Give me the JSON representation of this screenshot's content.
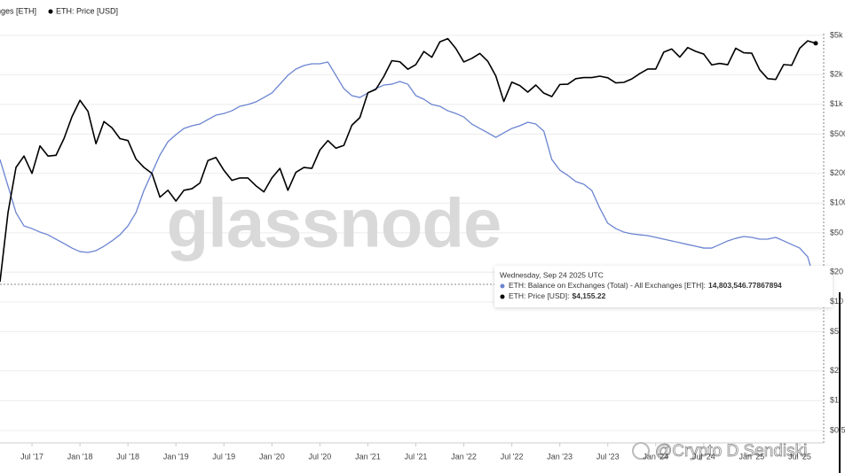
{
  "chart_data": {
    "type": "line",
    "log_scale": true,
    "grid": true,
    "x": [
      "2017-03",
      "2017-04",
      "2017-05",
      "2017-06",
      "2017-07",
      "2017-08",
      "2017-09",
      "2017-10",
      "2017-11",
      "2017-12",
      "2018-01",
      "2018-02",
      "2018-03",
      "2018-04",
      "2018-05",
      "2018-06",
      "2018-07",
      "2018-08",
      "2018-09",
      "2018-10",
      "2018-11",
      "2018-12",
      "2019-01",
      "2019-02",
      "2019-03",
      "2019-04",
      "2019-05",
      "2019-06",
      "2019-07",
      "2019-08",
      "2019-09",
      "2019-10",
      "2019-11",
      "2019-12",
      "2020-01",
      "2020-02",
      "2020-03",
      "2020-04",
      "2020-05",
      "2020-06",
      "2020-07",
      "2020-08",
      "2020-09",
      "2020-10",
      "2020-11",
      "2020-12",
      "2021-01",
      "2021-02",
      "2021-03",
      "2021-04",
      "2021-05",
      "2021-06",
      "2021-07",
      "2021-08",
      "2021-09",
      "2021-10",
      "2021-11",
      "2021-12",
      "2022-01",
      "2022-02",
      "2022-03",
      "2022-04",
      "2022-05",
      "2022-06",
      "2022-07",
      "2022-08",
      "2022-09",
      "2022-10",
      "2022-11",
      "2022-12",
      "2023-01",
      "2023-02",
      "2023-03",
      "2023-04",
      "2023-05",
      "2023-06",
      "2023-07",
      "2023-08",
      "2023-09",
      "2023-10",
      "2023-11",
      "2023-12",
      "2024-01",
      "2024-02",
      "2024-03",
      "2024-04",
      "2024-05",
      "2024-06",
      "2024-07",
      "2024-08",
      "2024-09",
      "2024-10",
      "2024-11",
      "2024-12",
      "2025-01",
      "2025-02",
      "2025-03",
      "2025-04",
      "2025-05",
      "2025-06",
      "2025-07",
      "2025-08",
      "2025-09"
    ],
    "xlim": [
      "2017-03",
      "2025-10"
    ],
    "xticks": [
      {
        "value": "2017-07",
        "label": "Jul '17"
      },
      {
        "value": "2018-01",
        "label": "Jan '18"
      },
      {
        "value": "2018-07",
        "label": "Jul '18"
      },
      {
        "value": "2019-01",
        "label": "Jan '19"
      },
      {
        "value": "2019-07",
        "label": "Jul '19"
      },
      {
        "value": "2020-01",
        "label": "Jan '20"
      },
      {
        "value": "2020-07",
        "label": "Jul '20"
      },
      {
        "value": "2021-01",
        "label": "Jan '21"
      },
      {
        "value": "2021-07",
        "label": "Jul '21"
      },
      {
        "value": "2022-01",
        "label": "Jan '22"
      },
      {
        "value": "2022-07",
        "label": "Jul '22"
      },
      {
        "value": "2023-01",
        "label": "Jan '23"
      },
      {
        "value": "2023-07",
        "label": "Jul '23"
      },
      {
        "value": "2024-01",
        "label": "Jan '24"
      },
      {
        "value": "2024-07",
        "label": "Jul '24"
      },
      {
        "value": "2025-01",
        "label": "Jan '25"
      },
      {
        "value": "2025-07",
        "label": "Jul '25"
      }
    ],
    "ylim": [
      0.374,
      5200
    ],
    "yticks": [
      {
        "value": 5000,
        "label": "$5k"
      },
      {
        "value": 2000,
        "label": "$2k"
      },
      {
        "value": 1000,
        "label": "$1k"
      },
      {
        "value": 500,
        "label": "$500"
      },
      {
        "value": 200,
        "label": "$200"
      },
      {
        "value": 100,
        "label": "$100"
      },
      {
        "value": 50,
        "label": "$50"
      },
      {
        "value": 20,
        "label": "$20"
      },
      {
        "value": 10,
        "label": "$10"
      },
      {
        "value": 5,
        "label": "$5"
      },
      {
        "value": 2,
        "label": "$2"
      },
      {
        "value": 1,
        "label": "$1"
      },
      {
        "value": 0.5,
        "label": "$0.5"
      }
    ],
    "y2lim": [
      0,
      38210000
    ],
    "series": [
      {
        "name": "ETH: Balance on Exchanges (Total) - All Exchanges [ETH]",
        "color": "#6b84d1",
        "axis": "y2",
        "values": [
          26460000,
          23980000,
          21500000,
          20260000,
          20010000,
          19680000,
          19430000,
          19020000,
          18610000,
          18190000,
          17860000,
          17780000,
          17950000,
          18360000,
          18860000,
          19430000,
          20260000,
          21500000,
          23570000,
          25220000,
          26880000,
          28120000,
          28780000,
          29360000,
          29610000,
          29770000,
          30190000,
          30600000,
          30760000,
          31010000,
          31430000,
          31590000,
          31840000,
          32250000,
          32670000,
          33490000,
          34320000,
          34900000,
          35230000,
          35400000,
          35400000,
          35560000,
          34320000,
          33080000,
          32420000,
          32250000,
          32670000,
          33080000,
          33410000,
          33490000,
          33740000,
          33490000,
          32420000,
          32090000,
          31590000,
          31430000,
          31010000,
          30760000,
          30430000,
          29770000,
          29360000,
          28950000,
          28530000,
          28950000,
          29360000,
          29610000,
          29940000,
          29770000,
          29110000,
          26460000,
          25470000,
          24980000,
          24400000,
          24150000,
          23570000,
          21920000,
          20510000,
          20010000,
          19680000,
          19520000,
          19430000,
          19350000,
          19190000,
          19020000,
          18860000,
          18690000,
          18520000,
          18360000,
          18190000,
          18190000,
          18520000,
          18860000,
          19100000,
          19270000,
          19190000,
          19020000,
          19020000,
          19190000,
          18860000,
          18520000,
          18190000,
          17370000,
          14803546.77867894
        ]
      },
      {
        "name": "ETH: Price [USD]",
        "color": "#000000",
        "values": [
          16,
          80,
          230,
          300,
          200,
          380,
          300,
          305,
          450,
          750,
          1100,
          850,
          400,
          670,
          580,
          450,
          430,
          280,
          230,
          200,
          115,
          135,
          105,
          135,
          140,
          160,
          270,
          290,
          215,
          170,
          180,
          180,
          150,
          130,
          180,
          225,
          135,
          205,
          230,
          225,
          345,
          430,
          360,
          385,
          615,
          735,
          1310,
          1420,
          1920,
          2770,
          2700,
          2270,
          2530,
          3430,
          3000,
          4300,
          4630,
          3680,
          2690,
          2920,
          3280,
          2730,
          1940,
          1070,
          1680,
          1550,
          1330,
          1570,
          1300,
          1200,
          1590,
          1600,
          1820,
          1870,
          1870,
          1930,
          1860,
          1650,
          1670,
          1810,
          2050,
          2280,
          2280,
          3380,
          3640,
          3010,
          3760,
          3440,
          3230,
          2510,
          2600,
          2520,
          3700,
          3330,
          3300,
          2240,
          1820,
          1790,
          2530,
          2490,
          3700,
          4400,
          4155.22
        ]
      }
    ],
    "tooltip": {
      "date": "Wednesday, Sep 24 2025 UTC",
      "items": [
        {
          "label": "ETH: Balance on Exchanges (Total) - All Exchanges [ETH]:",
          "value_label": "14,803,546.77867894"
        },
        {
          "label": "ETH: Price [USD]:",
          "value_label": "$4,155.22"
        }
      ]
    },
    "watermark": "glassnode",
    "credit": "@Crypto D Sendiski"
  }
}
